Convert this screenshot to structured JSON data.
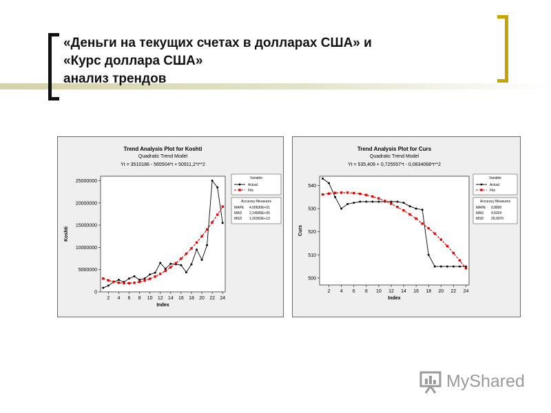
{
  "slide": {
    "title_lines": [
      "«Деньги на текущих счетах в долларах США» и",
      "«Курс доллара США»",
      "анализ трендов"
    ],
    "accent_color": "#c9a300",
    "watermark": "MyShared"
  },
  "chart_data": [
    {
      "type": "line",
      "title": "Trend Analysis Plot for Koshti",
      "subtitle": "Quadratic Trend Model",
      "equation": "Yt = 3510186 - 565504*t + 50911,2*t**2",
      "xlabel": "Index",
      "ylabel": "Koshti",
      "x": [
        1,
        2,
        3,
        4,
        5,
        6,
        7,
        8,
        9,
        10,
        11,
        12,
        13,
        14,
        15,
        16,
        17,
        18,
        19,
        20,
        21,
        22,
        23,
        24
      ],
      "xticks": [
        "2",
        "4",
        "6",
        "8",
        "10",
        "12",
        "14",
        "16",
        "18",
        "20",
        "22",
        "24"
      ],
      "yticks": [
        "0",
        "5000000",
        "10000000",
        "15000000",
        "20000000",
        "25000000"
      ],
      "ylim": [
        0,
        26000000
      ],
      "xlim": [
        0.5,
        24.5
      ],
      "series": [
        {
          "name": "Actual",
          "color": "#000000",
          "marker": "circle",
          "values": [
            900000,
            1400000,
            2200000,
            2700000,
            2200000,
            3000000,
            3500000,
            2700000,
            3000000,
            3900000,
            4300000,
            6500000,
            5200000,
            6300000,
            6200000,
            6000000,
            4400000,
            6200000,
            9500000,
            7200000,
            10500000,
            25000000,
            23500000,
            15500000
          ]
        },
        {
          "name": "Fits",
          "color": "#dd0000",
          "marker": "square",
          "values": [
            2995593,
            2583000,
            2272000,
            2062000,
            1953000,
            1946000,
            2040000,
            2236000,
            2533000,
            2932000,
            3432000,
            4034000,
            4737000,
            5541000,
            6447000,
            7454000,
            8563000,
            9773000,
            11085000,
            12498000,
            14012000,
            15628000,
            17345000,
            19164000
          ]
        }
      ],
      "legend": {
        "title": "Variable",
        "items": [
          "Actual",
          "Fits"
        ]
      },
      "accuracy": {
        "title": "Accuracy Measures",
        "rows": [
          [
            "MAPE",
            "4,00630E+01"
          ],
          [
            "MAD",
            "2,24689E+06"
          ],
          [
            "MSD",
            "1,00353E+13"
          ]
        ]
      }
    },
    {
      "type": "line",
      "title": "Trend Analysis Plot for Curs",
      "subtitle": "Quadratic Trend Model",
      "equation": "Yt = 535,409 + 0,725557*t - 0,0834068*t**2",
      "xlabel": "Index",
      "ylabel": "Curs",
      "x": [
        1,
        2,
        3,
        4,
        5,
        6,
        7,
        8,
        9,
        10,
        11,
        12,
        13,
        14,
        15,
        16,
        17,
        18,
        19,
        20,
        21,
        22,
        23,
        24
      ],
      "xticks": [
        "2",
        "4",
        "6",
        "8",
        "10",
        "12",
        "14",
        "16",
        "18",
        "20",
        "22",
        "24"
      ],
      "yticks": [
        "500",
        "510",
        "520",
        "530",
        "540"
      ],
      "ylim": [
        497,
        544
      ],
      "xlim": [
        0.5,
        24.5
      ],
      "series": [
        {
          "name": "Actual",
          "color": "#000000",
          "marker": "circle",
          "values": [
            543,
            541,
            535,
            530,
            532,
            532.5,
            533,
            533,
            533,
            533,
            533,
            533,
            533,
            532.5,
            531,
            530,
            529.5,
            510,
            505,
            505,
            505,
            505,
            505,
            505
          ]
        },
        {
          "name": "Fits",
          "color": "#dd0000",
          "marker": "square",
          "values": [
            536.1,
            536.5,
            536.8,
            536.9,
            536.9,
            536.7,
            536.4,
            535.9,
            535.2,
            534.4,
            533.3,
            532.1,
            530.7,
            529.2,
            527.5,
            525.7,
            523.5,
            521.5,
            519.2,
            516.6,
            513.8,
            510.8,
            507.6,
            504.2
          ]
        }
      ],
      "legend": {
        "title": "Variable",
        "items": [
          "Actual",
          "Fits"
        ]
      },
      "accuracy": {
        "title": "Accuracy Measures",
        "rows": [
          [
            "MAPE",
            "0,8800"
          ],
          [
            "MAD",
            "4,6024"
          ],
          [
            "MSD",
            "29,0070"
          ]
        ]
      }
    }
  ]
}
